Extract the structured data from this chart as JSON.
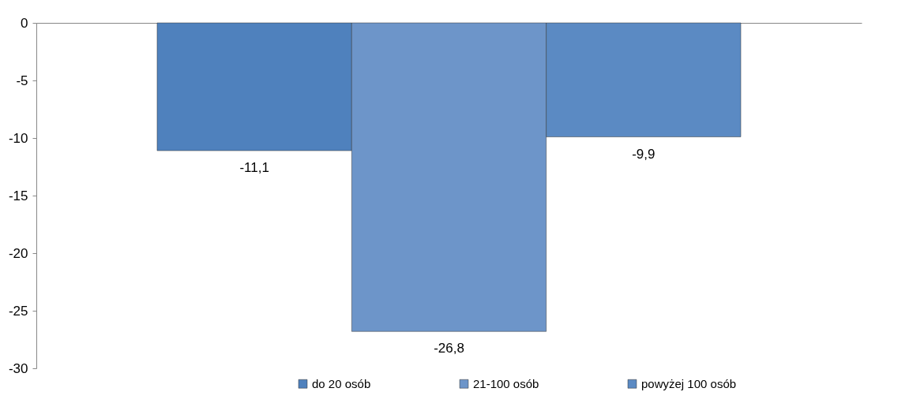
{
  "chart_data": {
    "type": "bar",
    "categories": [
      null
    ],
    "series": [
      {
        "name": "do 20 osób",
        "color": "#4f81bd",
        "values": [
          -11.1
        ],
        "value_labels": [
          "-11,1"
        ]
      },
      {
        "name": "21-100 osób",
        "color": "#6d95c9",
        "values": [
          -26.8
        ],
        "value_labels": [
          "-26,8"
        ]
      },
      {
        "name": "powyżej 100 osób",
        "color": "#5b8ac3",
        "values": [
          -9.9
        ],
        "value_labels": [
          "-9,9"
        ]
      }
    ],
    "ylim": [
      -30,
      0
    ],
    "yticks": [
      0,
      -5,
      -10,
      -15,
      -20,
      -25,
      -30
    ],
    "grid": false,
    "legend": "bottom",
    "tick_labels": "y"
  }
}
